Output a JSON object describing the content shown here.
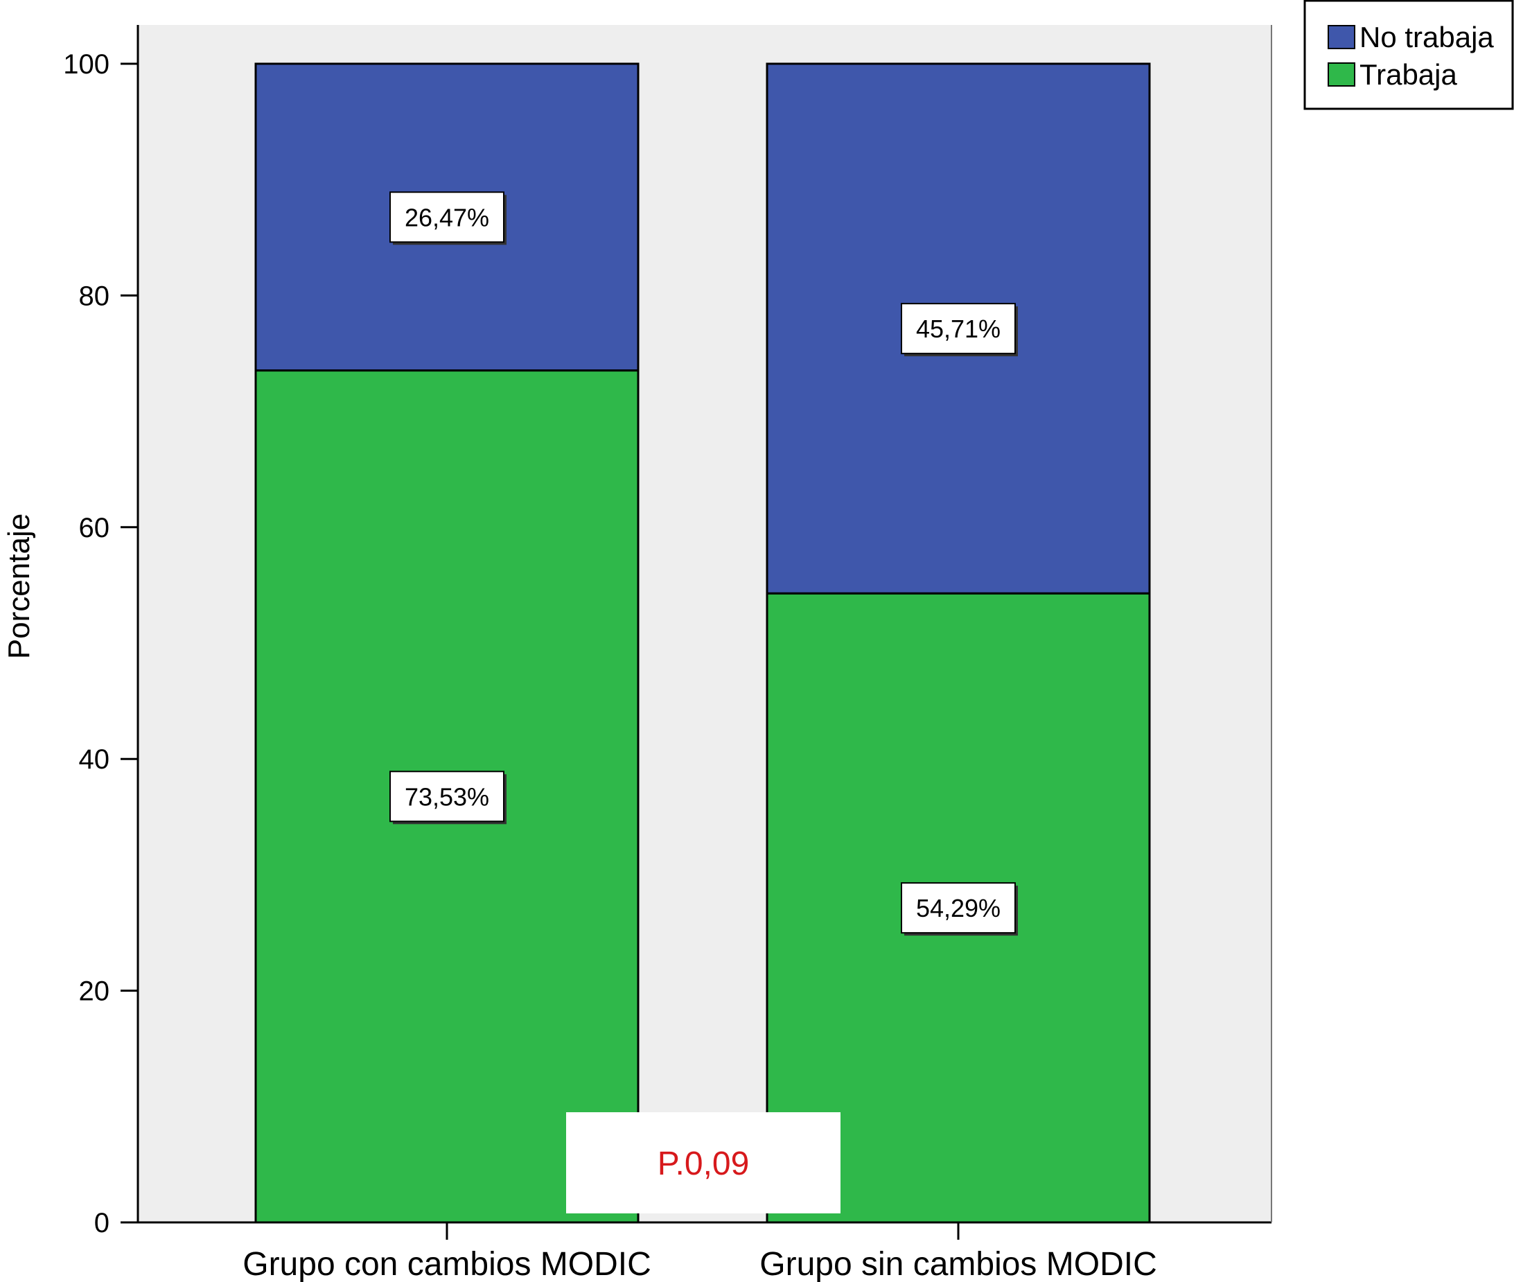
{
  "chart_data": {
    "type": "bar",
    "stacked": true,
    "categories": [
      "Grupo con cambios MODIC",
      "Grupo sin cambios MODIC"
    ],
    "series": [
      {
        "name": "Trabaja",
        "values": [
          73.53,
          54.29
        ],
        "labels": [
          "73,53%",
          "54,29%"
        ],
        "color": "#2fb84a"
      },
      {
        "name": "No trabaja",
        "values": [
          26.47,
          45.71
        ],
        "labels": [
          "26,47%",
          "45,71%"
        ],
        "color": "#3f57ab"
      }
    ],
    "title": "",
    "xlabel": "",
    "ylabel": "Porcentaje",
    "ylim": [
      0,
      100
    ],
    "yticks": [
      0,
      20,
      40,
      60,
      80,
      100
    ],
    "grid": false,
    "legend": {
      "placement": "top-right",
      "order": [
        "No trabaja",
        "Trabaja"
      ]
    },
    "annotation": {
      "text": "P.0,09",
      "color": "#d7191c"
    },
    "plot_background": "#eeeeee"
  }
}
